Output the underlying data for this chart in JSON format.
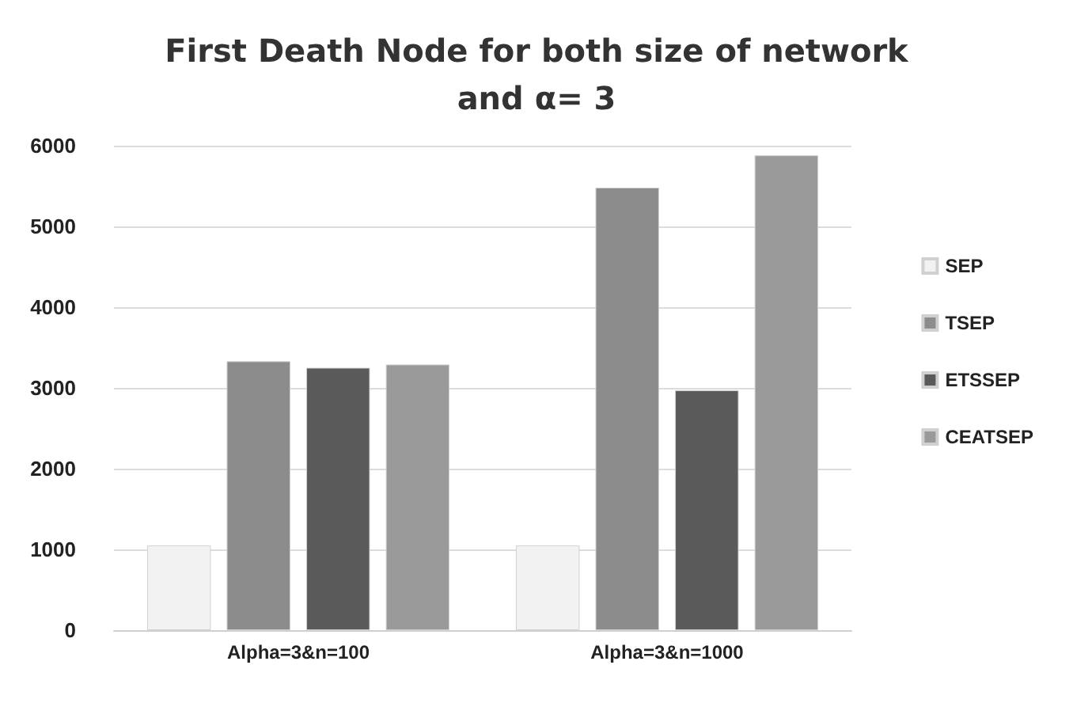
{
  "chart_data": {
    "type": "bar",
    "title": "First Death Node for both size of network\nand α= 3",
    "categories": [
      "Alpha=3&n=100",
      "Alpha=3&n=1000"
    ],
    "series": [
      {
        "name": "SEP",
        "color": "#f2f2f2",
        "values": [
          1050,
          1050
        ]
      },
      {
        "name": "TSEP",
        "color": "#8c8c8c",
        "values": [
          3330,
          5480
        ]
      },
      {
        "name": "ETSSEP",
        "color": "#5a5a5a",
        "values": [
          3250,
          2970
        ]
      },
      {
        "name": "CEATSEP",
        "color": "#9a9a9a",
        "values": [
          3290,
          5880
        ]
      }
    ],
    "ylim": [
      0,
      6000
    ],
    "yticks": [
      0,
      1000,
      2000,
      3000,
      4000,
      5000,
      6000
    ],
    "grid": "y",
    "legend": "right"
  }
}
